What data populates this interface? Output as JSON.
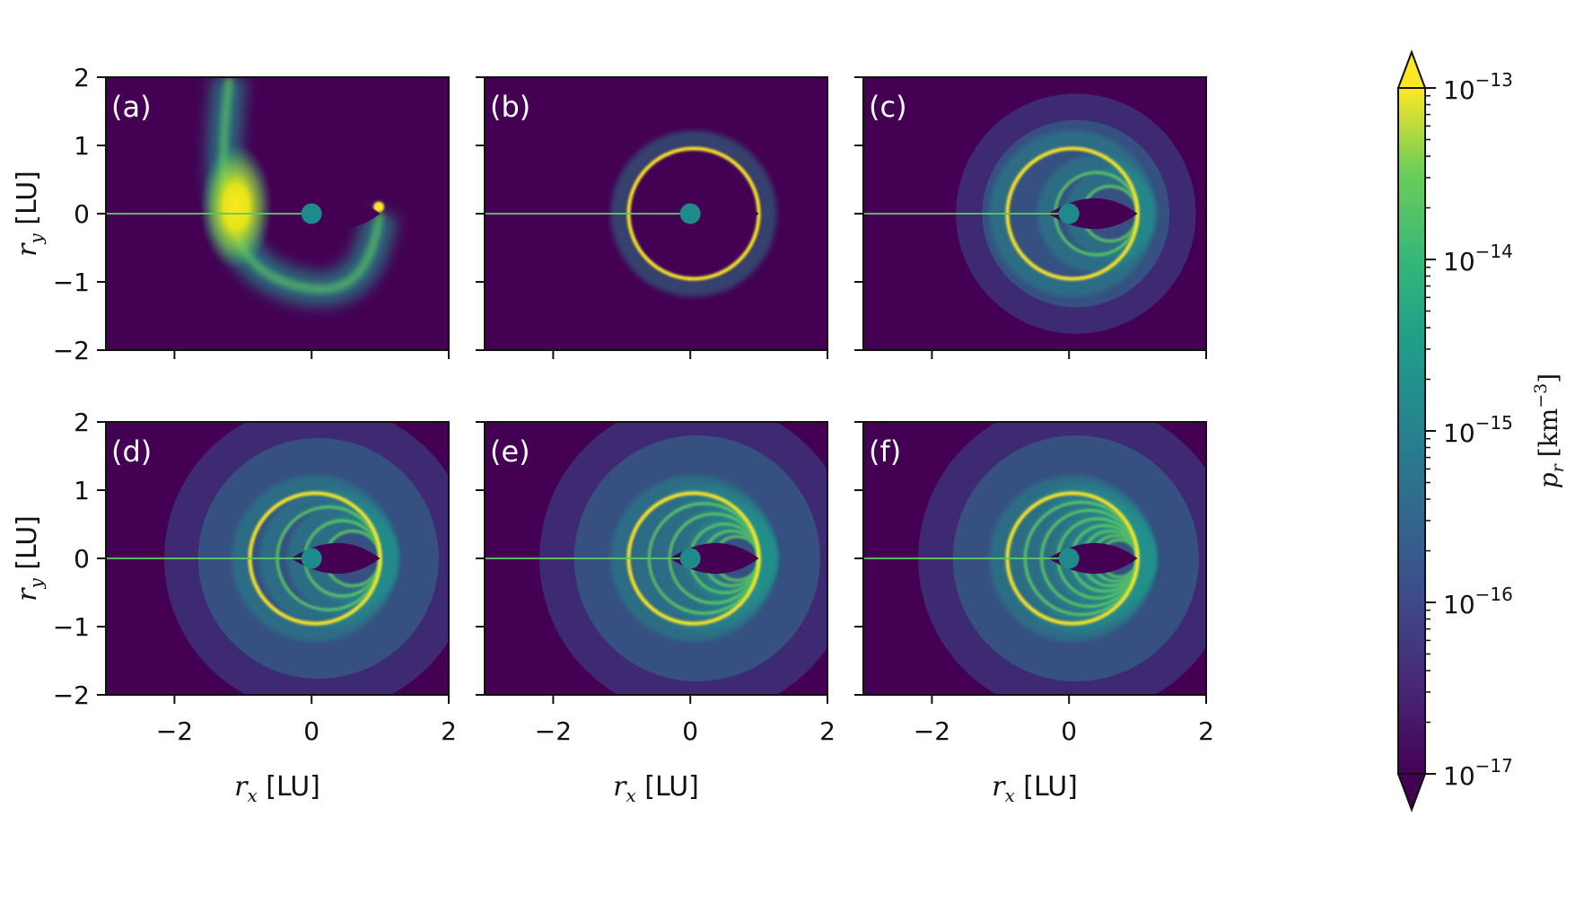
{
  "chart_data": {
    "type": "heatmap",
    "layout": "2x3 grid of panels with shared colorbar",
    "colormap": "viridis",
    "color_scale": "log",
    "panels": [
      {
        "label": "(a)",
        "rings": [],
        "features": "single spiral arm, bright spot near (-1.1, 0)"
      },
      {
        "label": "(b)",
        "rings": [
          0.95
        ],
        "features": "one spiral ring"
      },
      {
        "label": "(c)",
        "rings": [
          0.95,
          0.6,
          0.4
        ],
        "outer_front": 1.75
      },
      {
        "label": "(d)",
        "rings": [
          0.95,
          0.75,
          0.55,
          0.4
        ],
        "outer_front": 2.25
      },
      {
        "label": "(e)",
        "rings": [
          0.95,
          0.8,
          0.65,
          0.5,
          0.4,
          0.32
        ],
        "outer_front": 2.3
      },
      {
        "label": "(f)",
        "rings": [
          0.95,
          0.82,
          0.7,
          0.58,
          0.48,
          0.4,
          0.33,
          0.27
        ],
        "outer_front": 2.3
      }
    ],
    "xlim": [
      -3,
      2
    ],
    "ylim": [
      -2,
      2
    ],
    "xticks": [
      "−2",
      "0",
      "2"
    ],
    "xtick_values": [
      -2,
      0,
      2
    ],
    "yticks": [
      "2",
      "1",
      "0",
      "−1",
      "−2"
    ],
    "ytick_values": [
      2,
      1,
      0,
      -1,
      -2
    ],
    "xlabel": {
      "sym": "r",
      "sub": "x",
      "unit": " [LU]"
    },
    "ylabel": {
      "sym": "r",
      "sub": "y",
      "unit": " [LU]"
    },
    "planet": {
      "x": 0,
      "y": 0,
      "radius": 0.15,
      "color": "#1f8a8a"
    },
    "colorbar": {
      "label": {
        "sym": "p",
        "sub": "r",
        "unit": "[km",
        "exp": "−3",
        "close": "]"
      },
      "ticks": [
        {
          "base": "10",
          "exp": "−13",
          "value": -13
        },
        {
          "base": "10",
          "exp": "−14",
          "value": -14
        },
        {
          "base": "10",
          "exp": "−15",
          "value": -15
        },
        {
          "base": "10",
          "exp": "−16",
          "value": -16
        },
        {
          "base": "10",
          "exp": "−17",
          "value": -17
        }
      ],
      "range_log10": [
        -17,
        -13
      ],
      "extend": "both"
    },
    "colors": {
      "background": "#440154",
      "low": "#3b528b",
      "mid": "#21918c",
      "high": "#5ec962",
      "peak": "#fde725"
    }
  }
}
